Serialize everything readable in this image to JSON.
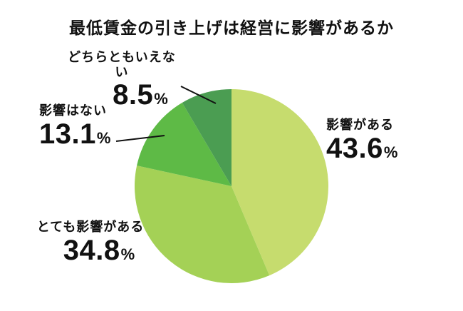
{
  "title": "最低賃金の引き上げは経営に影響があるか",
  "percent_sign": "%",
  "chart_data": {
    "type": "pie",
    "title": "最低賃金の引き上げは経営に影響があるか",
    "direction": "clockwise",
    "start_angle_deg": 0,
    "legend_position": "none",
    "slices": [
      {
        "label": "影響がある",
        "value": 43.6,
        "color": "#c6dc6e"
      },
      {
        "label": "とても影響がある",
        "value": 34.8,
        "color": "#a4d156"
      },
      {
        "label": "影響はない",
        "value": 13.1,
        "color": "#5eba46"
      },
      {
        "label": "どちらともいえない",
        "value": 8.5,
        "color": "#4b9d52"
      }
    ]
  }
}
